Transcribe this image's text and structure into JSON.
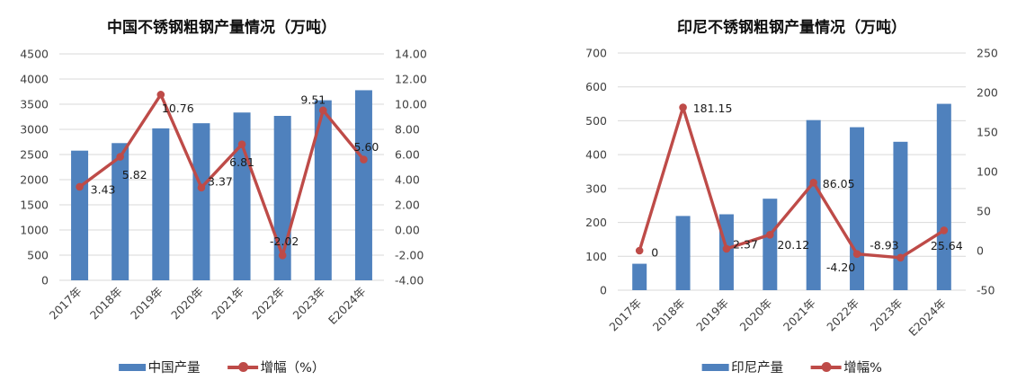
{
  "page": {
    "background": "#FFFFFF"
  },
  "colors": {
    "bar_blue": "#4F81BD",
    "line_red": "#BE4B48",
    "gridline": "#D9D9D9",
    "axis_text": "#3F3F3F",
    "label_text": "#1A1A1A"
  },
  "chart_data": [
    {
      "type": "combo",
      "title": "中国不锈钢粗钢产量情况（万吨）",
      "categories": [
        "2017年",
        "2018年",
        "2019年",
        "2020年",
        "2021年",
        "2022年",
        "2023年",
        "E2024年"
      ],
      "series": [
        {
          "name": "中国产量",
          "type": "bar",
          "axis": "left",
          "values": [
            2577,
            2727,
            3020,
            3122,
            3335,
            3268,
            3578,
            3778
          ]
        },
        {
          "name": "增幅（%）",
          "type": "line",
          "axis": "right",
          "values": [
            3.43,
            5.82,
            10.76,
            3.37,
            6.81,
            -2.02,
            9.51,
            5.6
          ],
          "data_labels": [
            "3.43",
            "5.82",
            "10.76",
            "3.37",
            "6.81",
            "-2.02",
            "9.51",
            "5.60"
          ],
          "label_offsets": [
            [
              26,
              3
            ],
            [
              16,
              20
            ],
            [
              19,
              15
            ],
            [
              21,
              -7
            ],
            [
              0,
              20
            ],
            [
              2,
              -16
            ],
            [
              -11,
              -12
            ],
            [
              3,
              -14
            ]
          ]
        }
      ],
      "left_axis": {
        "min": 0,
        "max": 4500,
        "step": 500,
        "ticks": [
          "0",
          "500",
          "1000",
          "1500",
          "2000",
          "2500",
          "3000",
          "3500",
          "4000",
          "4500"
        ]
      },
      "right_axis": {
        "min": -4,
        "max": 14,
        "step": 2,
        "ticks": [
          "-4.00",
          "-2.00",
          "0.00",
          "2.00",
          "4.00",
          "6.00",
          "8.00",
          "10.00",
          "12.00",
          "14.00"
        ]
      },
      "grid": true,
      "legend_position": "bottom"
    },
    {
      "type": "combo",
      "title": "印尼不锈钢粗钢产量情况（万吨）",
      "categories": [
        "2017年",
        "2018年",
        "2019年",
        "2020年",
        "2021年",
        "2022年",
        "2023年",
        "E2024年"
      ],
      "series": [
        {
          "name": "印尼产量",
          "type": "bar",
          "axis": "left",
          "values": [
            78,
            219,
            224,
            270,
            502,
            481,
            438,
            550
          ]
        },
        {
          "name": "增幅%",
          "type": "line",
          "axis": "right",
          "values": [
            0,
            181.15,
            2.37,
            20.12,
            86.05,
            -4.2,
            -8.93,
            25.64
          ],
          "data_labels": [
            "0",
            "181.15",
            "2.37",
            "20.12",
            "86.05",
            "-4.20",
            "-8.93",
            "25.64"
          ],
          "label_offsets": [
            [
              17,
              2
            ],
            [
              33,
              1
            ],
            [
              21,
              -5
            ],
            [
              26,
              11
            ],
            [
              28,
              1
            ],
            [
              -18,
              15
            ],
            [
              -18,
              -14
            ],
            [
              3,
              17
            ]
          ]
        }
      ],
      "left_axis": {
        "min": 0,
        "max": 700,
        "step": 100,
        "ticks": [
          "0",
          "100",
          "200",
          "300",
          "400",
          "500",
          "600",
          "700"
        ]
      },
      "right_axis": {
        "min": -50,
        "max": 250,
        "step": 50,
        "ticks": [
          "-50",
          "0",
          "50",
          "100",
          "150",
          "200",
          "250"
        ]
      },
      "grid": true,
      "legend_position": "bottom"
    }
  ]
}
